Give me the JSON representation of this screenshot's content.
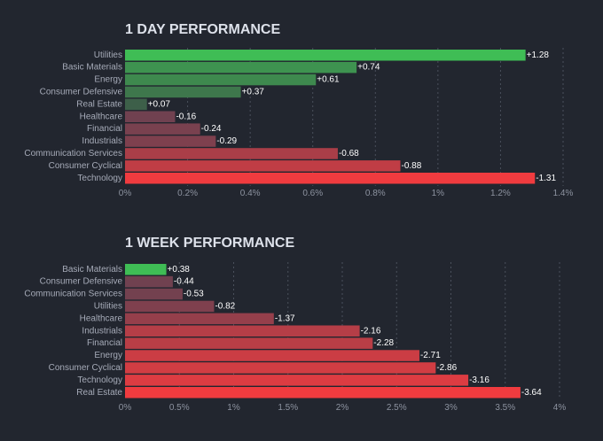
{
  "chart_data": [
    {
      "type": "bar",
      "orientation": "horizontal",
      "title": "1 DAY PERFORMANCE",
      "categories": [
        "Utilities",
        "Basic Materials",
        "Energy",
        "Consumer Defensive",
        "Real Estate",
        "Healthcare",
        "Financial",
        "Industrials",
        "Communication Services",
        "Consumer Cyclical",
        "Technology"
      ],
      "values": [
        1.28,
        0.74,
        0.61,
        0.37,
        0.07,
        -0.16,
        -0.24,
        -0.29,
        -0.68,
        -0.88,
        -1.31
      ],
      "value_labels": [
        "+1.28",
        "+0.74",
        "+0.61",
        "+0.37",
        "+0.07",
        "-0.16",
        "-0.24",
        "-0.29",
        "-0.68",
        "-0.88",
        "-1.31"
      ],
      "bar_length": "absolute value",
      "xlim": [
        0,
        1.4
      ],
      "xticks": [
        0,
        0.2,
        0.4,
        0.6,
        0.8,
        1,
        1.2,
        1.4
      ],
      "xtick_labels": [
        "0%",
        "0.2%",
        "0.4%",
        "0.6%",
        "0.8%",
        "1%",
        "1.2%",
        "1.4%"
      ],
      "colors": {
        "positive_strong": "#3fbd55",
        "positive_weak": "#3d5a48",
        "negative_weak": "#5e4252",
        "negative_strong": "#f03b3f"
      }
    },
    {
      "type": "bar",
      "orientation": "horizontal",
      "title": "1 WEEK PERFORMANCE",
      "categories": [
        "Basic Materials",
        "Consumer Defensive",
        "Communication Services",
        "Utilities",
        "Healthcare",
        "Industrials",
        "Financial",
        "Energy",
        "Consumer Cyclical",
        "Technology",
        "Real Estate"
      ],
      "values": [
        0.38,
        -0.44,
        -0.53,
        -0.82,
        -1.37,
        -2.16,
        -2.28,
        -2.71,
        -2.86,
        -3.16,
        -3.64
      ],
      "value_labels": [
        "+0.38",
        "-0.44",
        "-0.53",
        "-0.82",
        "-1.37",
        "-2.16",
        "-2.28",
        "-2.71",
        "-2.86",
        "-3.16",
        "-3.64"
      ],
      "bar_length": "absolute value",
      "xlim": [
        0,
        4
      ],
      "xticks": [
        0,
        0.5,
        1,
        1.5,
        2,
        2.5,
        3,
        3.5,
        4
      ],
      "xtick_labels": [
        "0%",
        "0.5%",
        "1%",
        "1.5%",
        "2%",
        "2.5%",
        "3%",
        "3.5%",
        "4%"
      ],
      "colors": {
        "positive_strong": "#3fbd55",
        "positive_weak": "#3d5a48",
        "negative_weak": "#5e4252",
        "negative_strong": "#f03b3f"
      }
    }
  ]
}
